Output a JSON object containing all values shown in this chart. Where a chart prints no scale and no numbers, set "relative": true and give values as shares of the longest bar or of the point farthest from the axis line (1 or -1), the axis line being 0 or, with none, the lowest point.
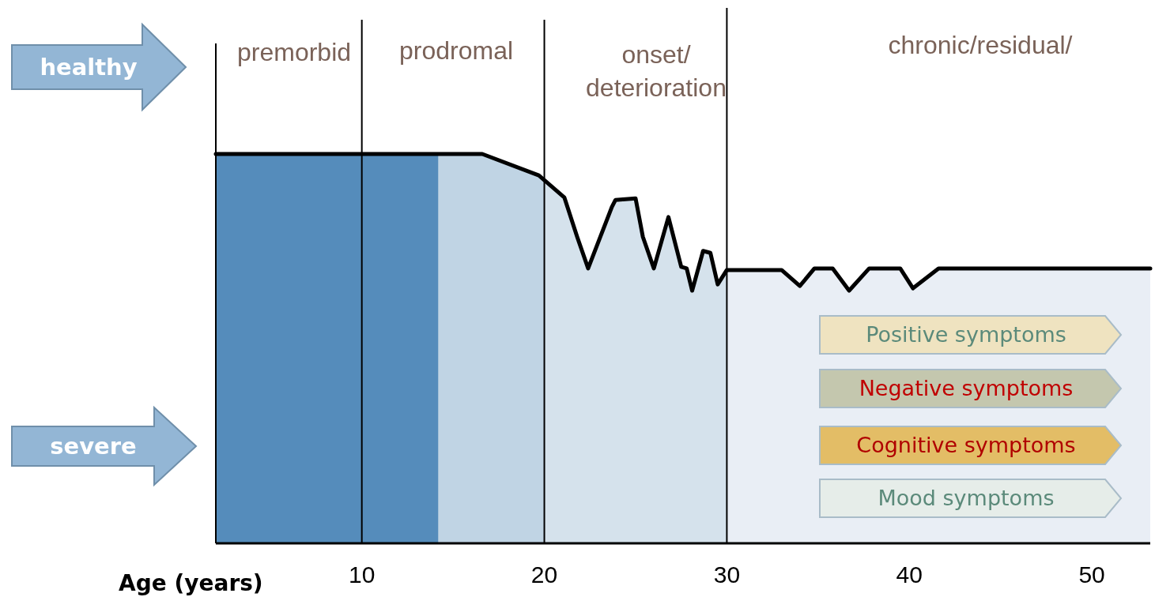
{
  "chart_data": {
    "type": "area",
    "relative": true,
    "xlabel": "Age (years)",
    "xlim": [
      2,
      53.2
    ],
    "xticks": [
      10,
      20,
      30,
      40,
      50
    ],
    "series": [
      {
        "color": "#558cbb",
        "x": [
          2,
          14.2
        ],
        "values": [
          1,
          1
        ]
      },
      {
        "color": "#c0d4e4",
        "x": [
          14.2,
          16.6,
          19.7,
          20
        ],
        "values": [
          1,
          1,
          0.945,
          0.933
        ]
      },
      {
        "color": "#d5e2ec",
        "x": [
          20,
          21.1,
          21.8,
          22.4,
          23.7,
          23.9,
          25.0,
          25.4,
          26.0,
          26.8,
          27.5,
          27.8,
          28.1,
          28.7,
          29.1,
          29.5,
          30
        ],
        "values": [
          0.933,
          0.888,
          0.787,
          0.706,
          0.864,
          0.882,
          0.886,
          0.787,
          0.706,
          0.838,
          0.71,
          0.706,
          0.649,
          0.751,
          0.746,
          0.665,
          0.702
        ]
      },
      {
        "color": "#e9eef5",
        "x": [
          30,
          33.0,
          34.0,
          34.8,
          35.8,
          36.7,
          37.8,
          39.5,
          40.2,
          41.6,
          53.2
        ],
        "values": [
          0.702,
          0.702,
          0.661,
          0.706,
          0.706,
          0.649,
          0.706,
          0.706,
          0.655,
          0.706,
          0.706
        ]
      },
      {
        "type": "line",
        "color": "#000000",
        "x": [
          2,
          16.6,
          19.7,
          21.1,
          21.8,
          22.4,
          23.7,
          23.9,
          25.0,
          25.4,
          26.0,
          26.8,
          27.5,
          27.8,
          28.1,
          28.7,
          29.1,
          29.5,
          30,
          33.0,
          34.0,
          34.8,
          35.8,
          36.7,
          37.8,
          39.5,
          40.2,
          41.6,
          53.2
        ],
        "values": [
          1,
          1,
          0.945,
          0.888,
          0.787,
          0.706,
          0.864,
          0.882,
          0.886,
          0.787,
          0.706,
          0.838,
          0.71,
          0.706,
          0.649,
          0.751,
          0.746,
          0.665,
          0.702,
          0.702,
          0.661,
          0.706,
          0.706,
          0.649,
          0.706,
          0.706,
          0.655,
          0.706,
          0.706
        ]
      }
    ],
    "ref_lines": [
      {
        "axis": "x",
        "value": 10
      },
      {
        "axis": "x",
        "value": 20
      },
      {
        "axis": "x",
        "value": 30
      }
    ],
    "annotations": [
      "healthy",
      "severe",
      "Positive symptoms",
      "Negative symptoms",
      "Cognitive symptoms",
      "Mood symptoms",
      "premorbid",
      "prodromal",
      "onset/\ndeterioration",
      "chronic/residual/"
    ]
  }
}
